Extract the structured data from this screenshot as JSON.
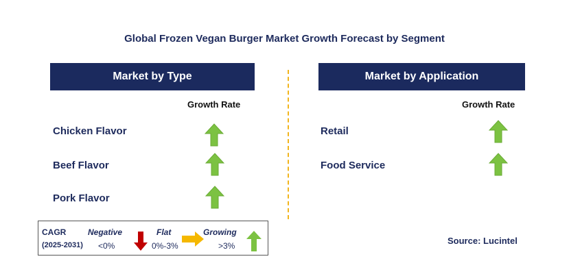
{
  "title": "Global Frozen Vegan Burger Market Growth Forecast by Segment",
  "left_panel": {
    "header": "Market by Type",
    "column_label": "Growth Rate",
    "rows": [
      {
        "label": "Chicken Flavor",
        "trend": "growing"
      },
      {
        "label": "Beef Flavor",
        "trend": "growing"
      },
      {
        "label": "Pork Flavor",
        "trend": "growing"
      }
    ]
  },
  "right_panel": {
    "header": "Market by Application",
    "column_label": "Growth Rate",
    "rows": [
      {
        "label": "Retail",
        "trend": "growing"
      },
      {
        "label": "Food Service",
        "trend": "growing"
      }
    ]
  },
  "legend": {
    "cagr_label": "CAGR",
    "period": "(2025-2031)",
    "negative_label": "Negative",
    "negative_range": "<0%",
    "flat_label": "Flat",
    "flat_range": "0%-3%",
    "growing_label": "Growing",
    "growing_range": ">3%"
  },
  "source": "Source: Lucintel",
  "colors": {
    "header_bg": "#1b2a5e",
    "growing_arrow": "#7cc242",
    "negative_arrow": "#c00000",
    "flat_arrow": "#f5b800",
    "divider": "#f2b51c"
  }
}
